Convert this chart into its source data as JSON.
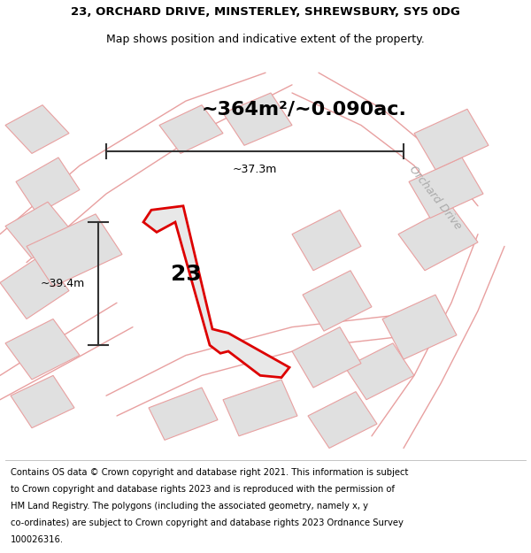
{
  "title_line1": "23, ORCHARD DRIVE, MINSTERLEY, SHREWSBURY, SY5 0DG",
  "title_line2": "Map shows position and indicative extent of the property.",
  "area_text": "~364m²/~0.090ac.",
  "label_number": "23",
  "dim_width": "~37.3m",
  "dim_height": "~39.4m",
  "street_label": "Orchard Drive",
  "footer_lines": [
    "Contains OS data © Crown copyright and database right 2021. This information is subject",
    "to Crown copyright and database rights 2023 and is reproduced with the permission of",
    "HM Land Registry. The polygons (including the associated geometry, namely x, y",
    "co-ordinates) are subject to Crown copyright and database rights 2023 Ordnance Survey",
    "100026316."
  ],
  "bg_color": "#ffffff",
  "map_bg": "#ffffff",
  "plot_fill": "#e8e8e8",
  "plot_edge": "#dd0000",
  "neighbor_fill": "#e0e0e0",
  "neighbor_edge": "#e8a0a0",
  "dim_color": "#333333",
  "street_color": "#aaaaaa",
  "title_fontsize": 9.5,
  "subtitle_fontsize": 9.0,
  "footer_fontsize": 7.2,
  "area_fontsize": 16,
  "label_fontsize": 18,
  "street_fontsize": 9
}
